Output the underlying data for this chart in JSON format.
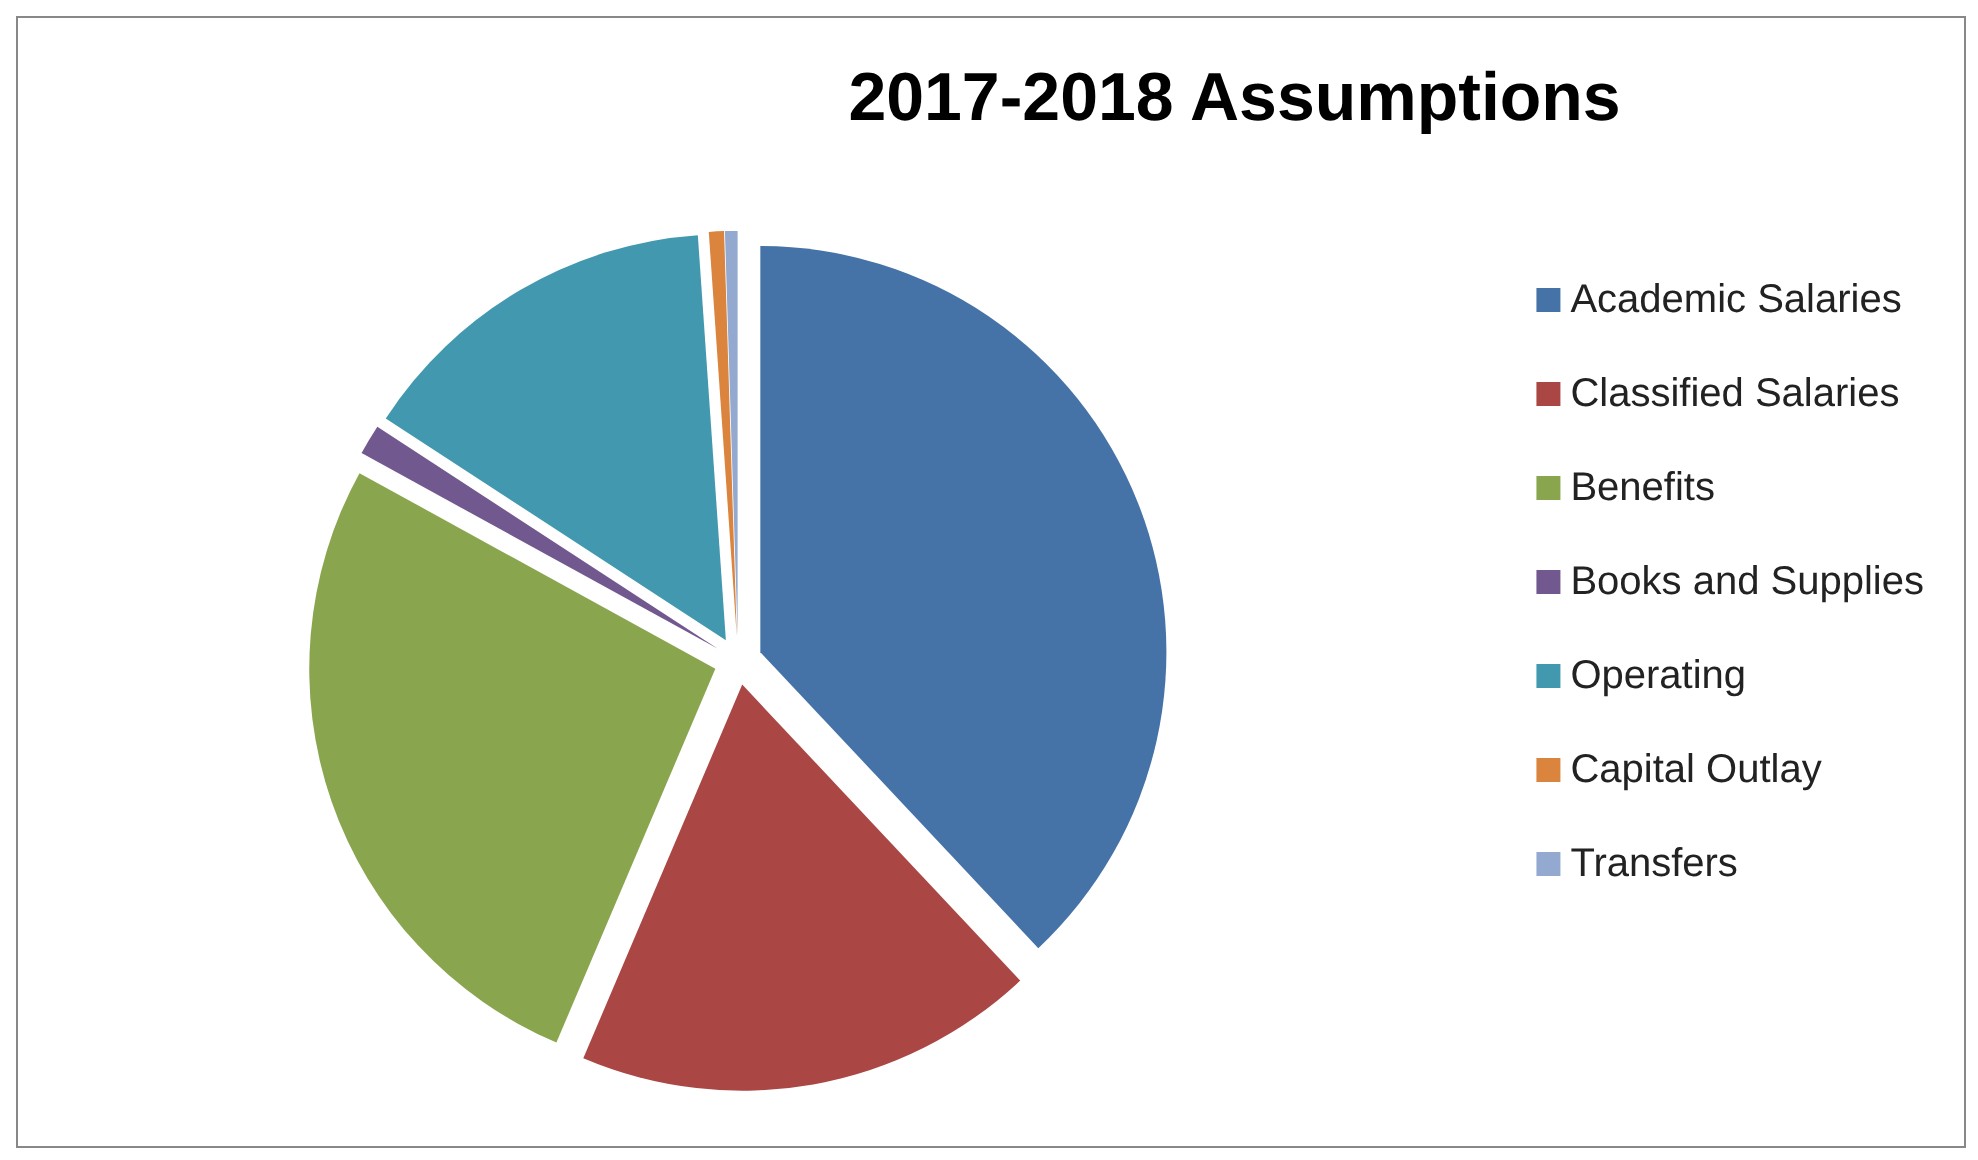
{
  "chart_data": {
    "type": "pie",
    "title": "2017-2018 Assumptions",
    "categories": [
      "Academic Salaries",
      "Classified Salaries",
      "Benefits",
      "Books and Supplies",
      "Operating",
      "Capital Outlay",
      "Transfers"
    ],
    "values": [
      38,
      18.4,
      26.6,
      1.2,
      14.7,
      0.6,
      0.5
    ],
    "colors": [
      "#4572a7",
      "#aa4643",
      "#89a54e",
      "#71588f",
      "#4198af",
      "#db843d",
      "#93a9cf"
    ],
    "legend": "right"
  }
}
